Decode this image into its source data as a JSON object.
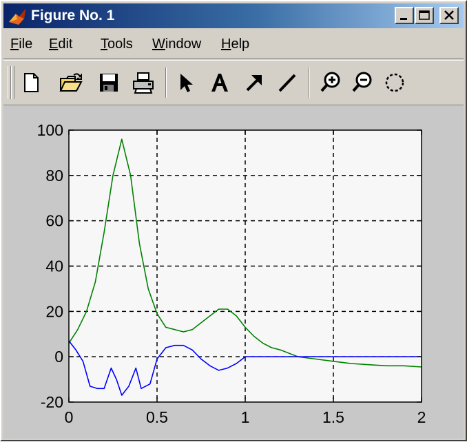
{
  "window": {
    "title": "Figure No. 1",
    "icons": [
      "matlab-logo-icon",
      "minimize-icon",
      "maximize-icon",
      "close-icon"
    ]
  },
  "menu": {
    "items": [
      {
        "label": "File",
        "hotkey": "F",
        "rest": "ile"
      },
      {
        "label": "Edit",
        "hotkey": "E",
        "rest": "dit"
      },
      {
        "label": "Tools",
        "hotkey": "T",
        "rest": "ools"
      },
      {
        "label": "Window",
        "hotkey": "W",
        "rest": "indow"
      },
      {
        "label": "Help",
        "hotkey": "H",
        "rest": "elp"
      }
    ]
  },
  "toolbar": {
    "buttons": [
      "new-figure-icon",
      "open-file-icon",
      "save-icon",
      "print-icon",
      "edit-plot-arrow-icon",
      "insert-text-icon",
      "insert-arrow-icon",
      "insert-line-icon",
      "zoom-in-icon",
      "zoom-out-icon",
      "rotate-3d-icon"
    ]
  },
  "colors": {
    "series_green": "#008000",
    "series_blue": "#0000ff",
    "axes_background": "#f7f7f7",
    "figure_background": "#c8c8c8"
  },
  "chart_data": {
    "type": "line",
    "title": "",
    "xlabel": "",
    "ylabel": "",
    "xlim": [
      0,
      2
    ],
    "ylim": [
      -20,
      100
    ],
    "xticks": [
      "0",
      "0.5",
      "1",
      "1.5",
      "2"
    ],
    "yticks": [
      "-20",
      "0",
      "20",
      "40",
      "60",
      "80",
      "100"
    ],
    "grid": true,
    "grid_style": "dashed",
    "series": [
      {
        "color": "#008000",
        "x": [
          0,
          0.05,
          0.1,
          0.15,
          0.2,
          0.25,
          0.3,
          0.35,
          0.4,
          0.45,
          0.5,
          0.55,
          0.6,
          0.65,
          0.7,
          0.75,
          0.8,
          0.85,
          0.9,
          0.95,
          1.0,
          1.05,
          1.1,
          1.15,
          1.2,
          1.3,
          1.4,
          1.5,
          1.6,
          1.7,
          1.8,
          1.9,
          2.0
        ],
        "y": [
          6,
          12,
          20,
          33,
          55,
          80,
          96,
          80,
          50,
          30,
          19,
          13,
          12,
          11,
          12,
          15,
          18,
          21,
          21,
          18,
          13,
          9,
          6,
          4,
          3,
          0,
          -1,
          -2,
          -3,
          -3.5,
          -4,
          -4,
          -4.5
        ]
      },
      {
        "color": "#0000ff",
        "x": [
          0,
          0.04,
          0.08,
          0.12,
          0.16,
          0.2,
          0.24,
          0.27,
          0.3,
          0.34,
          0.38,
          0.41,
          0.46,
          0.5,
          0.55,
          0.6,
          0.65,
          0.7,
          0.75,
          0.8,
          0.85,
          0.9,
          0.95,
          1.0,
          1.1,
          1.3,
          1.5,
          1.7,
          2.0
        ],
        "y": [
          7,
          3,
          -2,
          -13,
          -14,
          -14,
          -5,
          -10,
          -17,
          -13,
          -5,
          -14,
          -12,
          -1,
          4,
          5,
          5,
          3,
          -1,
          -4,
          -6,
          -5,
          -3,
          0,
          0,
          0,
          0,
          0,
          0
        ]
      }
    ]
  }
}
